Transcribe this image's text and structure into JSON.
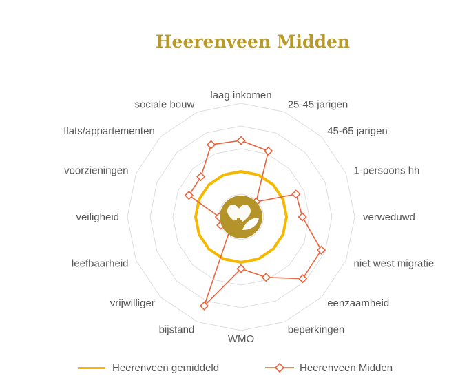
{
  "chart_data": {
    "type": "radar",
    "title": "Heerenveen Midden",
    "axes": [
      "laag inkomen",
      "25-45 jarigen",
      "45-65 jarigen",
      "1-persoons hh",
      "verweduwd",
      "niet west migratie",
      "eenzaamheid",
      "beperkingen",
      "WMO",
      "bijstand",
      "vrijwilliger",
      "leefbaarheid",
      "veiligheid",
      "voorzieningen",
      "flats/appartementen",
      "sociale bouw"
    ],
    "series": [
      {
        "name": "Heerenveen gemiddeld",
        "color": "#f5b800",
        "marker": "none",
        "values": [
          1,
          1,
          1,
          1,
          1,
          1,
          1,
          1,
          1,
          1,
          1,
          1,
          1,
          1,
          1,
          1
        ]
      },
      {
        "name": "Heerenveen Midden",
        "color": "#e8643c",
        "marker": "diamond-open",
        "values": [
          1.68,
          1.57,
          0.47,
          1.31,
          1.35,
          1.91,
          1.92,
          1.44,
          1.14,
          2.12,
          0.32,
          0.48,
          0.48,
          1.24,
          1.25,
          1.72
        ]
      }
    ],
    "rlim": [
      0,
      2.5
    ],
    "grid_rings": 5,
    "legend_position": "bottom"
  },
  "legend": {
    "items": [
      "Heerenveen gemiddeld",
      "Heerenveen Midden"
    ]
  },
  "center_logo": {
    "icon": "heart-leaf-logo",
    "color": "#b4932a"
  }
}
